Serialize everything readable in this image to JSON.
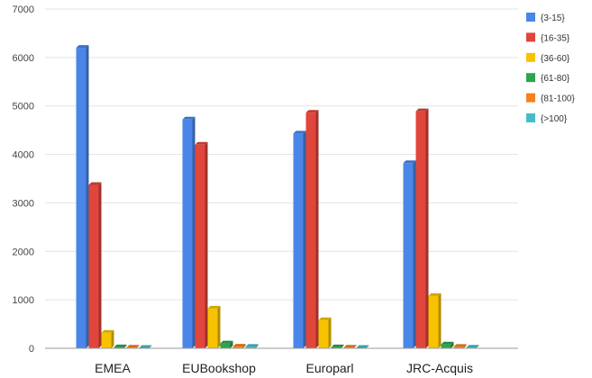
{
  "chart_data": {
    "type": "bar",
    "title": "",
    "xlabel": "",
    "ylabel": "",
    "ylim": [
      0,
      7000
    ],
    "yticks": [
      0,
      1000,
      2000,
      3000,
      4000,
      5000,
      6000,
      7000
    ],
    "grid": true,
    "legend_position": "right",
    "categories": [
      "EMEA",
      "EUBookshop",
      "Europarl",
      "JRC-Acquis"
    ],
    "series": [
      {
        "name": "{3-15}",
        "color": "#4a86e8",
        "values": [
          6200,
          4720,
          4430,
          3820
        ]
      },
      {
        "name": "{16-35}",
        "color": "#e0463b",
        "values": [
          3370,
          4200,
          4860,
          4890
        ]
      },
      {
        "name": "{36-60}",
        "color": "#f7c200",
        "values": [
          320,
          820,
          580,
          1080
        ]
      },
      {
        "name": "{61-80}",
        "color": "#2ea44f",
        "values": [
          20,
          100,
          20,
          80
        ]
      },
      {
        "name": "{81-100}",
        "color": "#f5821f",
        "values": [
          15,
          35,
          15,
          30
        ]
      },
      {
        "name": "{>100}",
        "color": "#46bdc6",
        "values": [
          10,
          30,
          10,
          15
        ]
      }
    ]
  }
}
